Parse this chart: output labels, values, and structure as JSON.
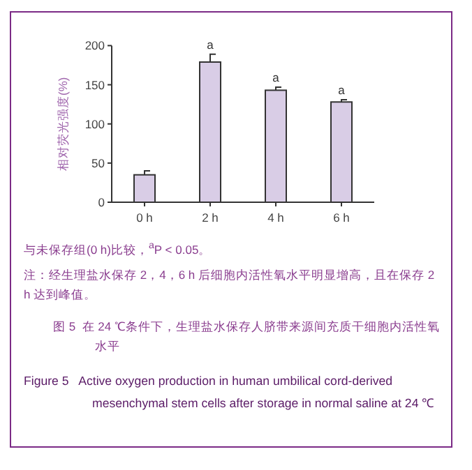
{
  "chart_data": {
    "type": "bar",
    "title": "图 5  在 24 ℃条件下，生理盐水保存人脐带来源间充质干细胞内活性氧水平",
    "subtitle": "Figure 5   Active oxygen production in human umbilical cord-derived mesenchymal stem cells after storage in normal saline at 24 ℃",
    "ylabel": "相对荧光强度(%)",
    "categories": [
      "0 h",
      "2 h",
      "4 h",
      "6 h"
    ],
    "values": [
      35,
      179,
      143,
      128
    ],
    "errors": [
      5,
      10,
      4,
      3
    ],
    "color": "#d9cde6",
    "ylim": [
      0,
      200
    ],
    "yticks": [
      0,
      50,
      100,
      150,
      200
    ],
    "grid": false,
    "annotations": [
      {
        "text": "a",
        "x": "2 h",
        "y": 189
      },
      {
        "text": "a",
        "x": "4 h",
        "y": 147
      },
      {
        "text": "a",
        "x": "6 h",
        "y": 131
      },
      "与未保存组(0 h)比较，$^{a}$P < 0.05。",
      "注：经生理盐水保存 2，4，6 h 后细胞内活性氧水平明显增高，且在保存 2 h 达到峰值。"
    ]
  }
}
